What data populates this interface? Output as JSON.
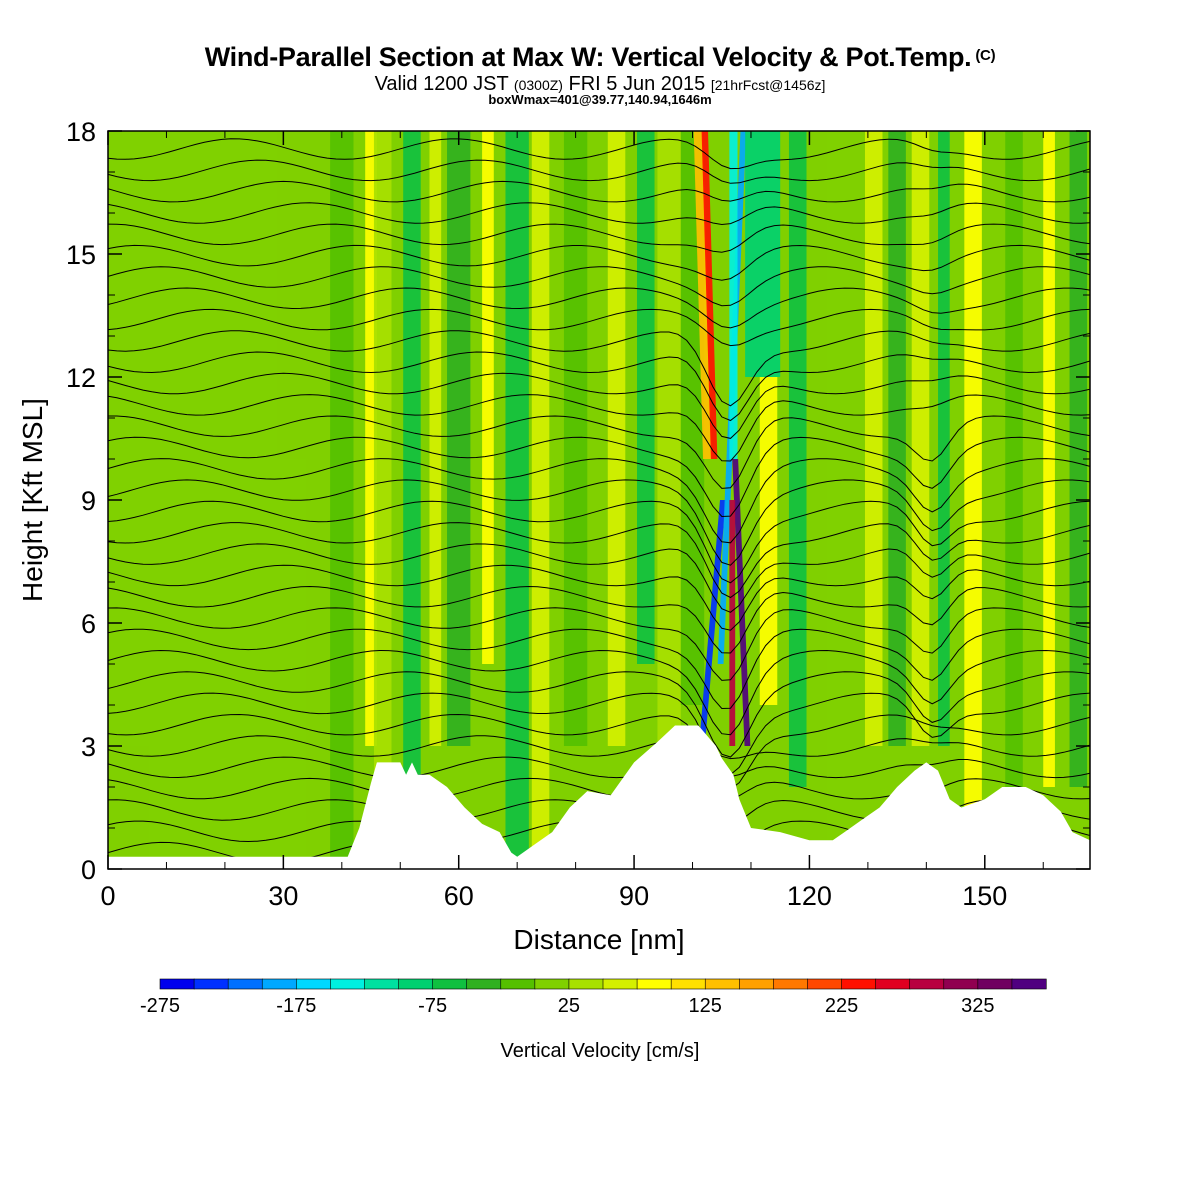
{
  "header": {
    "title": "Wind-Parallel Section at Max W: Vertical Velocity & Pot.Temp.",
    "copyright": "(C)",
    "valid_prefix": "Valid 1200 JST",
    "valid_utc": "(0300Z)",
    "valid_date": "FRI 5 Jun 2015",
    "forecast_info": "[21hrFcst@1456z]",
    "box_wmax": "boxWmax=401@39.77,140.94,1646m"
  },
  "chart_data": {
    "type": "heatmap",
    "xlabel": "Distance [nm]",
    "ylabel": "Height [Kft MSL]",
    "xlim": [
      0,
      168
    ],
    "ylim": [
      0,
      18
    ],
    "xticks": [
      0,
      30,
      60,
      90,
      120,
      150
    ],
    "yticks": [
      0,
      3,
      6,
      9,
      12,
      15,
      18
    ],
    "colorbar": {
      "label": "Vertical Velocity [cm/s]",
      "ticks": [
        "-275",
        "-175",
        "-75",
        "25",
        "125",
        "225",
        "325"
      ],
      "colors": [
        "#0000ee",
        "#0030ff",
        "#0070ff",
        "#00a8ff",
        "#00d8ff",
        "#00f0e0",
        "#00e0a0",
        "#00d070",
        "#10c040",
        "#30b020",
        "#55c000",
        "#80d000",
        "#a8e000",
        "#d4f000",
        "#ffff00",
        "#ffe000",
        "#ffc000",
        "#ffa000",
        "#ff7800",
        "#ff4800",
        "#ff1000",
        "#e00020",
        "#b80040",
        "#900050",
        "#700060",
        "#500080"
      ],
      "min": -300,
      "max": 400
    },
    "terrain_profile": [
      [
        0,
        0.3
      ],
      [
        41,
        0.3
      ],
      [
        43,
        1.0
      ],
      [
        45,
        2.1
      ],
      [
        46,
        2.6
      ],
      [
        50,
        2.6
      ],
      [
        51,
        2.3
      ],
      [
        52,
        2.6
      ],
      [
        53,
        2.3
      ],
      [
        55,
        2.3
      ],
      [
        58,
        2.0
      ],
      [
        61,
        1.5
      ],
      [
        64,
        1.1
      ],
      [
        67,
        0.9
      ],
      [
        69,
        0.4
      ],
      [
        70,
        0.3
      ],
      [
        73,
        0.6
      ],
      [
        76,
        0.9
      ],
      [
        79,
        1.5
      ],
      [
        82,
        1.9
      ],
      [
        86,
        1.8
      ],
      [
        90,
        2.6
      ],
      [
        94,
        3.1
      ],
      [
        97,
        3.5
      ],
      [
        101,
        3.5
      ],
      [
        104,
        3.0
      ],
      [
        105,
        2.7
      ],
      [
        107,
        2.3
      ],
      [
        108,
        1.7
      ],
      [
        110,
        1.0
      ],
      [
        115,
        0.9
      ],
      [
        120,
        0.7
      ],
      [
        124,
        0.7
      ],
      [
        126,
        0.9
      ],
      [
        129,
        1.2
      ],
      [
        132,
        1.5
      ],
      [
        135,
        2.0
      ],
      [
        138,
        2.4
      ],
      [
        140,
        2.6
      ],
      [
        142,
        2.4
      ],
      [
        144,
        1.7
      ],
      [
        146,
        1.5
      ],
      [
        150,
        1.7
      ],
      [
        153,
        2.0
      ],
      [
        157,
        2.0
      ],
      [
        160,
        1.8
      ],
      [
        163,
        1.4
      ],
      [
        165,
        0.9
      ],
      [
        168,
        0.7
      ]
    ],
    "wmax_value": 401,
    "wmax_location": "39.77,140.94",
    "wmax_height_m": 1646
  }
}
